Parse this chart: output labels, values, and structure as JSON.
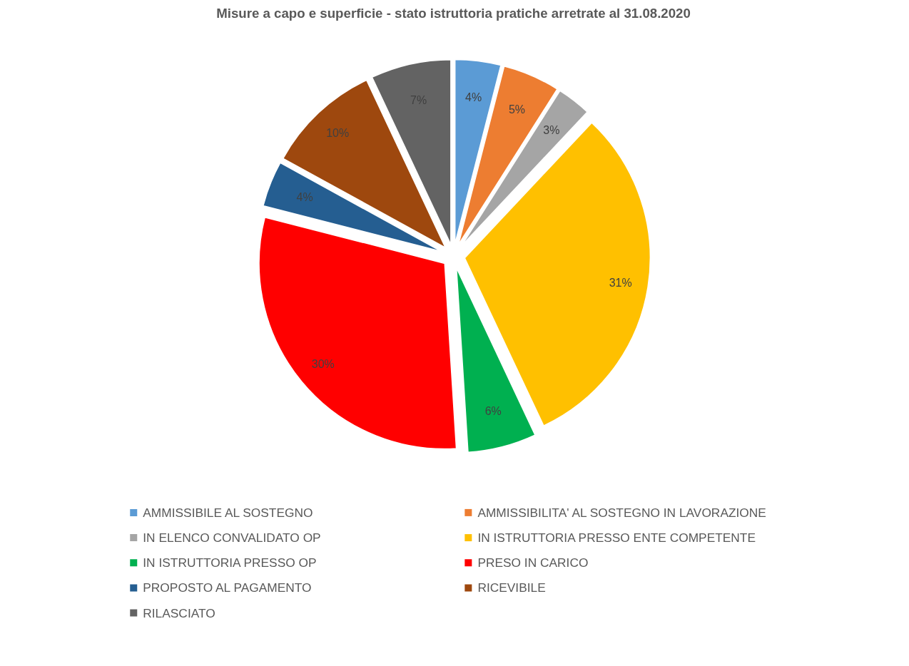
{
  "chart_data": {
    "type": "pie",
    "title": "Misure a capo e superficie - stato istruttoria pratiche arretrate al 31.08.2020",
    "categories": [
      "AMMISSIBILE AL SOSTEGNO",
      "AMMISSIBILITA' AL SOSTEGNO IN LAVORAZIONE",
      "IN ELENCO CONVALIDATO OP",
      "IN ISTRUTTORIA PRESSO ENTE COMPETENTE",
      "IN ISTRUTTORIA PRESSO OP",
      "PRESO IN CARICO",
      "PROPOSTO AL PAGAMENTO",
      "RICEVIBILE",
      "RILASCIATO"
    ],
    "values": [
      4,
      5,
      3,
      31,
      6,
      30,
      4,
      10,
      7
    ],
    "value_labels": [
      "4%",
      "5%",
      "3%",
      "31%",
      "6%",
      "30%",
      "4%",
      "10%",
      "7%"
    ],
    "colors": [
      "#5b9bd5",
      "#ed7d31",
      "#a5a5a5",
      "#ffc000",
      "#00b050",
      "#ff0000",
      "#255e91",
      "#9e480e",
      "#636363"
    ],
    "legend": "bottom"
  }
}
